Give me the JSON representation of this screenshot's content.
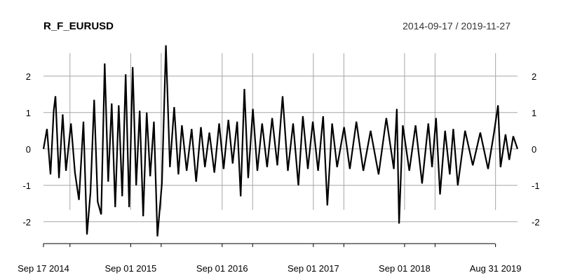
{
  "title": "R_F_EURUSD",
  "date_range": "2014-09-17 / 2019-11-27",
  "chart_data": {
    "type": "line",
    "title": "R_F_EURUSD",
    "subtitle": "2014-09-17 / 2019-11-27",
    "xlabel": "",
    "ylabel": "",
    "ylim": [
      -2.6,
      2.9
    ],
    "grid": true,
    "y_ticks": [
      -2,
      -1,
      0,
      1,
      2
    ],
    "y_tick_labels": [
      "-2",
      "-1",
      "0",
      "1",
      "2"
    ],
    "x_ticks": [
      "2014-09-17",
      "2015-01-01",
      "2015-09-01",
      "2016-01-01",
      "2016-09-01",
      "2017-01-01",
      "2017-09-01",
      "2018-01-01",
      "2018-09-01",
      "2019-01-01",
      "2019-08-31"
    ],
    "x_tick_labels": [
      "Sep 17 2014",
      "",
      "Sep 01 2015",
      "",
      "Sep 01 2016",
      "",
      "Sep 01 2017",
      "",
      "Sep 01 2018",
      "",
      "Aug 31 2019"
    ],
    "x_start": "2014-09-17",
    "x_end": "2019-11-27",
    "series": [
      {
        "color": "#000000",
        "points": [
          [
            "2014-09-17",
            0.0
          ],
          [
            "2014-10-01",
            0.55
          ],
          [
            "2014-10-15",
            -0.7
          ],
          [
            "2014-10-28",
            1.05
          ],
          [
            "2014-11-04",
            1.45
          ],
          [
            "2014-11-18",
            -0.8
          ],
          [
            "2014-12-03",
            0.95
          ],
          [
            "2014-12-16",
            -0.6
          ],
          [
            "2015-01-05",
            0.7
          ],
          [
            "2015-01-21",
            -0.65
          ],
          [
            "2015-02-06",
            -1.4
          ],
          [
            "2015-02-24",
            0.75
          ],
          [
            "2015-03-10",
            -2.35
          ],
          [
            "2015-03-24",
            -1.2
          ],
          [
            "2015-04-08",
            1.35
          ],
          [
            "2015-04-22",
            -1.45
          ],
          [
            "2015-05-06",
            -1.8
          ],
          [
            "2015-05-20",
            2.35
          ],
          [
            "2015-06-03",
            -0.9
          ],
          [
            "2015-06-17",
            1.25
          ],
          [
            "2015-07-01",
            -1.6
          ],
          [
            "2015-07-15",
            1.2
          ],
          [
            "2015-07-29",
            -1.3
          ],
          [
            "2015-08-12",
            2.05
          ],
          [
            "2015-08-26",
            -1.6
          ],
          [
            "2015-09-09",
            2.25
          ],
          [
            "2015-09-23",
            -1.0
          ],
          [
            "2015-10-07",
            1.05
          ],
          [
            "2015-10-21",
            -1.85
          ],
          [
            "2015-11-04",
            1.0
          ],
          [
            "2015-11-18",
            -0.75
          ],
          [
            "2015-12-03",
            0.75
          ],
          [
            "2015-12-17",
            -2.4
          ],
          [
            "2016-01-04",
            -0.95
          ],
          [
            "2016-01-20",
            2.85
          ],
          [
            "2016-02-05",
            -0.5
          ],
          [
            "2016-02-22",
            1.15
          ],
          [
            "2016-03-10",
            -0.7
          ],
          [
            "2016-03-24",
            0.65
          ],
          [
            "2016-04-12",
            -0.6
          ],
          [
            "2016-05-02",
            0.55
          ],
          [
            "2016-05-20",
            -0.9
          ],
          [
            "2016-06-08",
            0.6
          ],
          [
            "2016-06-24",
            -0.5
          ],
          [
            "2016-07-12",
            0.45
          ],
          [
            "2016-08-01",
            -0.65
          ],
          [
            "2016-08-20",
            0.7
          ],
          [
            "2016-09-07",
            -0.55
          ],
          [
            "2016-09-26",
            0.8
          ],
          [
            "2016-10-13",
            -0.4
          ],
          [
            "2016-10-31",
            0.75
          ],
          [
            "2016-11-14",
            -1.3
          ],
          [
            "2016-11-29",
            1.65
          ],
          [
            "2016-12-14",
            -0.8
          ],
          [
            "2017-01-02",
            1.1
          ],
          [
            "2017-01-20",
            -0.6
          ],
          [
            "2017-02-08",
            0.7
          ],
          [
            "2017-02-28",
            -0.5
          ],
          [
            "2017-03-20",
            0.85
          ],
          [
            "2017-04-10",
            -0.45
          ],
          [
            "2017-05-01",
            1.45
          ],
          [
            "2017-05-22",
            -0.6
          ],
          [
            "2017-06-12",
            0.7
          ],
          [
            "2017-07-03",
            -1.0
          ],
          [
            "2017-07-21",
            0.9
          ],
          [
            "2017-08-10",
            -0.55
          ],
          [
            "2017-08-30",
            0.75
          ],
          [
            "2017-09-20",
            -0.6
          ],
          [
            "2017-10-10",
            0.9
          ],
          [
            "2017-10-27",
            -1.55
          ],
          [
            "2017-11-15",
            0.7
          ],
          [
            "2017-12-05",
            -0.5
          ],
          [
            "2018-01-02",
            0.6
          ],
          [
            "2018-01-25",
            -0.55
          ],
          [
            "2018-02-20",
            0.75
          ],
          [
            "2018-03-20",
            -0.6
          ],
          [
            "2018-04-18",
            0.5
          ],
          [
            "2018-05-20",
            -0.7
          ],
          [
            "2018-06-20",
            0.85
          ],
          [
            "2018-07-20",
            -0.55
          ],
          [
            "2018-08-01",
            1.1
          ],
          [
            "2018-08-10",
            -2.05
          ],
          [
            "2018-08-25",
            0.65
          ],
          [
            "2018-09-20",
            -0.6
          ],
          [
            "2018-10-15",
            0.65
          ],
          [
            "2018-11-10",
            -0.95
          ],
          [
            "2018-12-05",
            0.7
          ],
          [
            "2018-12-20",
            -0.5
          ],
          [
            "2019-01-05",
            0.85
          ],
          [
            "2019-01-21",
            -1.25
          ],
          [
            "2019-02-10",
            0.5
          ],
          [
            "2019-03-01",
            -0.7
          ],
          [
            "2019-03-15",
            0.55
          ],
          [
            "2019-04-02",
            -1.0
          ],
          [
            "2019-05-01",
            0.5
          ],
          [
            "2019-06-01",
            -0.45
          ],
          [
            "2019-07-01",
            0.45
          ],
          [
            "2019-08-01",
            -0.55
          ],
          [
            "2019-08-25",
            0.45
          ],
          [
            "2019-09-10",
            1.2
          ],
          [
            "2019-09-20",
            -0.5
          ],
          [
            "2019-10-10",
            0.4
          ],
          [
            "2019-10-25",
            -0.3
          ],
          [
            "2019-11-10",
            0.35
          ],
          [
            "2019-11-27",
            0.0
          ]
        ]
      }
    ]
  }
}
